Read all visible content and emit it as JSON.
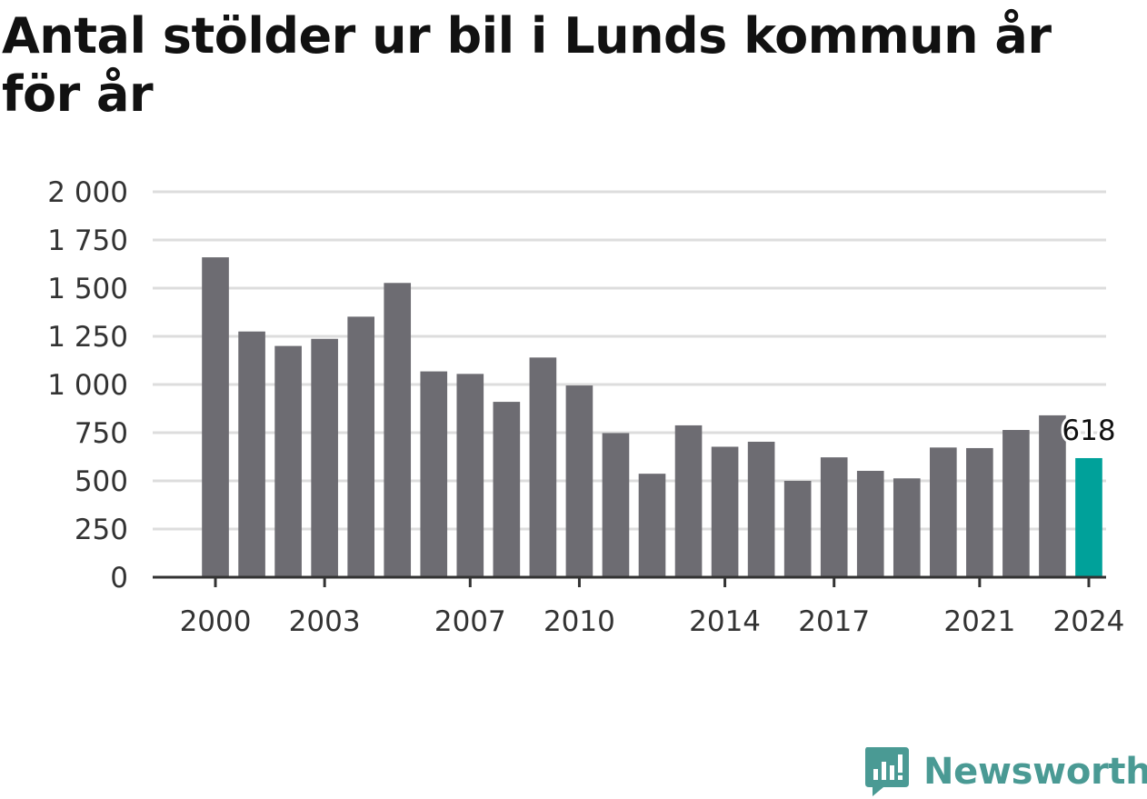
{
  "brand": {
    "name": "Newsworthy",
    "icon": "newsworthy-logo-icon",
    "color": "#4a9a94"
  },
  "chart_data": {
    "type": "bar",
    "title": "Antal stölder ur bil i Lunds kommun år för år",
    "xlabel": "",
    "ylabel": "",
    "categories": [
      "2000",
      "2001",
      "2002",
      "2003",
      "2004",
      "2005",
      "2006",
      "2007",
      "2008",
      "2009",
      "2010",
      "2011",
      "2012",
      "2013",
      "2014",
      "2015",
      "2016",
      "2017",
      "2018",
      "2019",
      "2020",
      "2021",
      "2022",
      "2023",
      "2024"
    ],
    "values": [
      1660,
      1275,
      1200,
      1237,
      1352,
      1527,
      1068,
      1055,
      910,
      1140,
      995,
      748,
      537,
      788,
      677,
      703,
      500,
      622,
      552,
      513,
      673,
      670,
      764,
      840,
      618
    ],
    "ylim": [
      0,
      2000
    ],
    "yticks": [
      0,
      250,
      500,
      750,
      1000,
      1250,
      1500,
      1750,
      2000
    ],
    "ytick_labels": [
      "0",
      "250",
      "500",
      "750",
      "1 000",
      "1 250",
      "1 500",
      "1 750",
      "2 000"
    ],
    "xtick_labels": [
      "2000",
      "2003",
      "2007",
      "2010",
      "2014",
      "2017",
      "2021",
      "2024"
    ],
    "highlight": {
      "category": "2024",
      "label": "618"
    },
    "colors": {
      "bar": "#6d6c72",
      "highlight": "#00a19a",
      "grid": "#dddddd",
      "axis": "#333333"
    },
    "grid": true,
    "legend": "none"
  }
}
